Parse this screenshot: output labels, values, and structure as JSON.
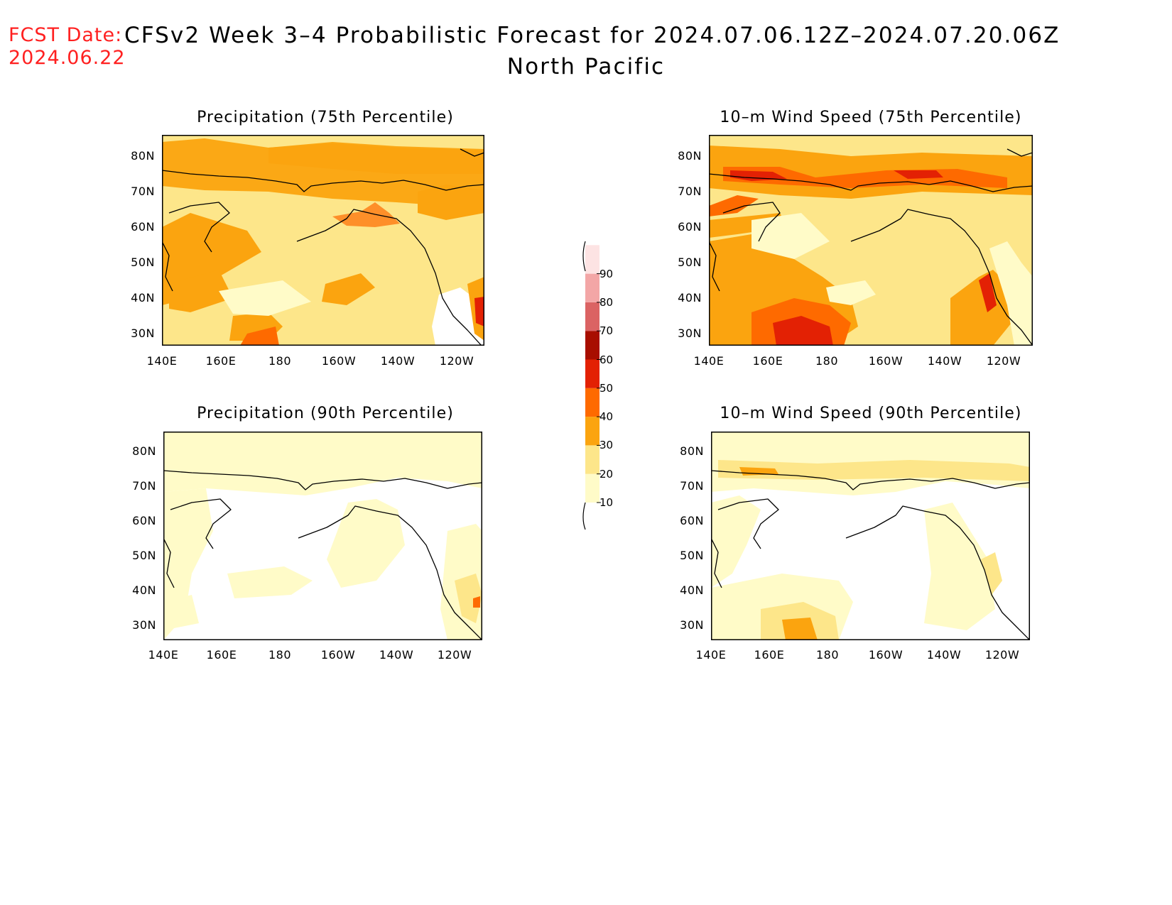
{
  "header": {
    "fcst_label": "FCST Date:",
    "fcst_date": "2024.06.22",
    "title": "CFSv2 Week 3–4 Probabilistic Forecast for 2024.07.06.12Z–2024.07.20.06Z",
    "region": "North Pacific"
  },
  "axes": {
    "lat_labels": [
      "80N",
      "70N",
      "60N",
      "50N",
      "40N",
      "30N"
    ],
    "lon_labels": [
      "140E",
      "160E",
      "180",
      "160W",
      "140W",
      "120W"
    ]
  },
  "panels": [
    {
      "id": "precip75",
      "title": "Precipitation (75th Percentile)"
    },
    {
      "id": "wind75",
      "title": "10–m Wind Speed (75th Percentile)"
    },
    {
      "id": "precip90",
      "title": "Precipitation (90th Percentile)"
    },
    {
      "id": "wind90",
      "title": "10–m Wind Speed (90th Percentile)"
    }
  ],
  "colorbar": {
    "levels": [
      "10",
      "20",
      "30",
      "40",
      "50",
      "60",
      "70",
      "80",
      "90"
    ],
    "colors": [
      "#fffbc8",
      "#fde68a",
      "#fba40f",
      "#fe6a00",
      "#e32104",
      "#a80e00",
      "#db6363",
      "#f3a6a6",
      "#fde3e3"
    ]
  }
}
